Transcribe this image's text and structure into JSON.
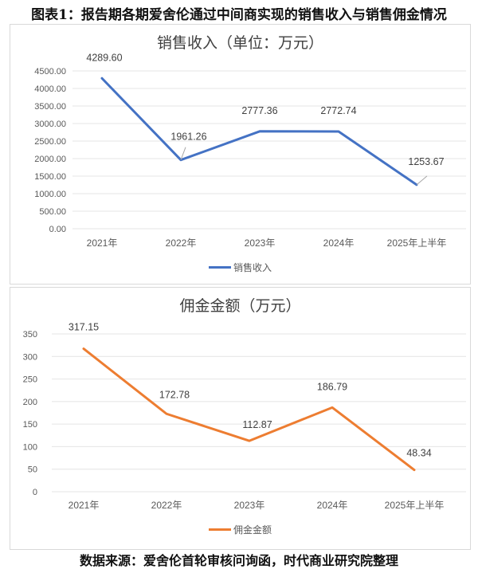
{
  "figure": {
    "title": "图表1：报告期各期爱舍伦通过中间商实现的销售收入与销售佣金情况",
    "source": "数据来源：爱舍伦首轮审核问询函，时代商业研究院整理"
  },
  "chart_data": [
    {
      "type": "line",
      "title": "销售收入（单位：万元）",
      "categories": [
        "2021年",
        "2022年",
        "2023年",
        "2024年",
        "2025年上半年"
      ],
      "series": [
        {
          "name": "销售收入",
          "color": "#4472c4",
          "values": [
            4289.6,
            1961.26,
            2777.36,
            2772.74,
            1253.67
          ]
        }
      ],
      "value_labels": [
        "4289.60",
        "1961.26",
        "2777.36",
        "2772.74",
        "1253.67"
      ],
      "yticks": [
        "0.00",
        "500.00",
        "1000.00",
        "1500.00",
        "2000.00",
        "2500.00",
        "3000.00",
        "3500.00",
        "4000.00",
        "4500.00"
      ],
      "ylim": [
        0,
        4500
      ],
      "xlabel": "",
      "ylabel": "",
      "grid": true,
      "legend_position": "bottom"
    },
    {
      "type": "line",
      "title": "佣金金额（万元）",
      "categories": [
        "2021年",
        "2022年",
        "2023年",
        "2024年",
        "2025年上半年"
      ],
      "series": [
        {
          "name": "佣金金额",
          "color": "#ed7d31",
          "values": [
            317.15,
            172.78,
            112.87,
            186.79,
            48.34
          ]
        }
      ],
      "value_labels": [
        "317.15",
        "172.78",
        "112.87",
        "186.79",
        "48.34"
      ],
      "yticks": [
        "0",
        "50",
        "100",
        "150",
        "200",
        "250",
        "300",
        "350"
      ],
      "ylim": [
        0,
        350
      ],
      "xlabel": "",
      "ylabel": "",
      "grid": true,
      "legend_position": "bottom"
    }
  ]
}
